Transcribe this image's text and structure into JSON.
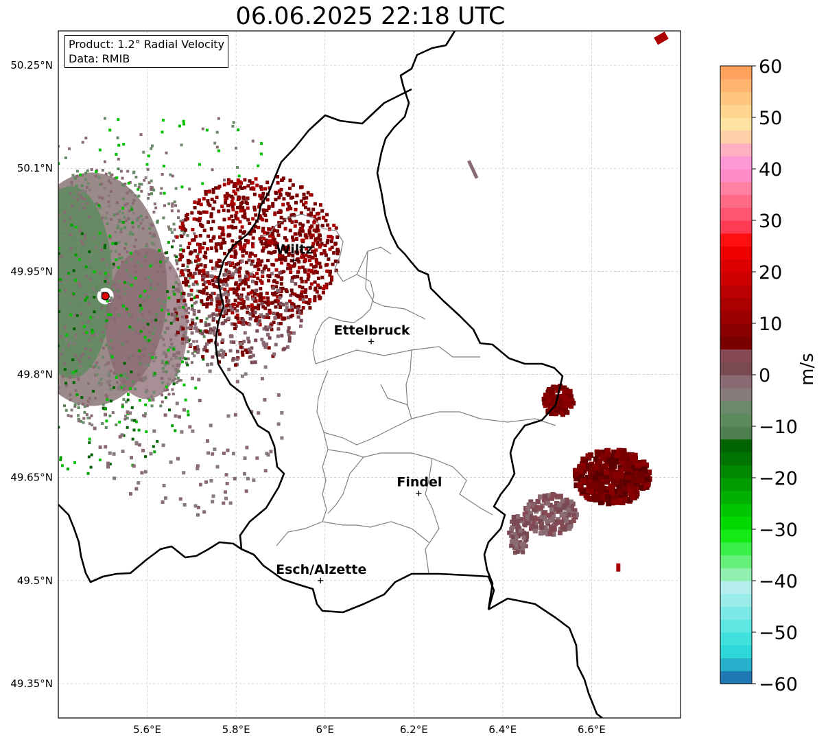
{
  "title": "06.06.2025 22:18 UTC",
  "info": {
    "product": "Product: 1.2° Radial Velocity",
    "data_source": "Data: RMIB"
  },
  "map": {
    "lon_range": [
      5.4,
      6.8
    ],
    "lat_range": [
      49.3,
      50.3
    ],
    "grid": true,
    "lon_ticks": [
      {
        "value": 5.6,
        "label": "5.6°E"
      },
      {
        "value": 5.8,
        "label": "5.8°E"
      },
      {
        "value": 6.0,
        "label": "6°E"
      },
      {
        "value": 6.2,
        "label": "6.2°E"
      },
      {
        "value": 6.4,
        "label": "6.4°E"
      },
      {
        "value": 6.6,
        "label": "6.6°E"
      }
    ],
    "lat_ticks": [
      {
        "value": 50.25,
        "label": "50.25°N"
      },
      {
        "value": 50.1,
        "label": "50.1°N"
      },
      {
        "value": 49.95,
        "label": "49.95°N"
      },
      {
        "value": 49.8,
        "label": "49.8°N"
      },
      {
        "value": 49.65,
        "label": "49.65°N"
      },
      {
        "value": 49.5,
        "label": "49.5°N"
      },
      {
        "value": 49.35,
        "label": "49.35°N"
      }
    ],
    "radar_site": {
      "lon": 5.506,
      "lat": 49.914
    },
    "cities": [
      {
        "name": "Wiltz",
        "lon": 5.93,
        "lat": 49.966
      },
      {
        "name": "Ettelbruck",
        "lon": 6.104,
        "lat": 49.848
      },
      {
        "name": "Findel",
        "lon": 6.211,
        "lat": 49.627
      },
      {
        "name": "Esch/Alzette",
        "lon": 5.99,
        "lat": 49.5
      }
    ]
  },
  "colorbar": {
    "label": "m/s",
    "min": -60,
    "max": 60,
    "ticks": [
      {
        "value": 60,
        "label": "60"
      },
      {
        "value": 50,
        "label": "50"
      },
      {
        "value": 40,
        "label": "40"
      },
      {
        "value": 30,
        "label": "30"
      },
      {
        "value": 20,
        "label": "20"
      },
      {
        "value": 10,
        "label": "10"
      },
      {
        "value": 0,
        "label": "0"
      },
      {
        "value": -10,
        "label": "−10"
      },
      {
        "value": -20,
        "label": "−20"
      },
      {
        "value": -30,
        "label": "−30"
      },
      {
        "value": -40,
        "label": "−40"
      },
      {
        "value": -50,
        "label": "−50"
      },
      {
        "value": -60,
        "label": "−60"
      }
    ],
    "colors": [
      "#1f78b4",
      "#26b0cc",
      "#2ed8d8",
      "#40e0dc",
      "#5ee6e0",
      "#7ce9e6",
      "#9aece9",
      "#b6eeee",
      "#90f0b0",
      "#66f07a",
      "#3af048",
      "#16ea16",
      "#00d800",
      "#00c400",
      "#00b000",
      "#009c00",
      "#008800",
      "#007400",
      "#006400",
      "#4f7f4f",
      "#5d8a5d",
      "#6b8a6b",
      "#877a7a",
      "#8a6a72",
      "#7a4a52",
      "#864a55",
      "#7a0000",
      "#8a0000",
      "#9a0000",
      "#aa0000",
      "#ba0000",
      "#cc0000",
      "#dd0000",
      "#ee0000",
      "#ff1010",
      "#ff3a55",
      "#ff5570",
      "#ff6b85",
      "#ff80a0",
      "#ff8cc8",
      "#ff99d5",
      "#ffb0c0",
      "#ffd0a8",
      "#ffe3a0",
      "#ffd590",
      "#ffc680",
      "#ffb570",
      "#ffa25e"
    ]
  },
  "velocity_colors": {
    "inbound_dark_green": "#006400",
    "green": "#00c000",
    "gray_green": "#5e8a5e",
    "mauve": "#8a6a72",
    "dark_red": "#7a0000"
  }
}
